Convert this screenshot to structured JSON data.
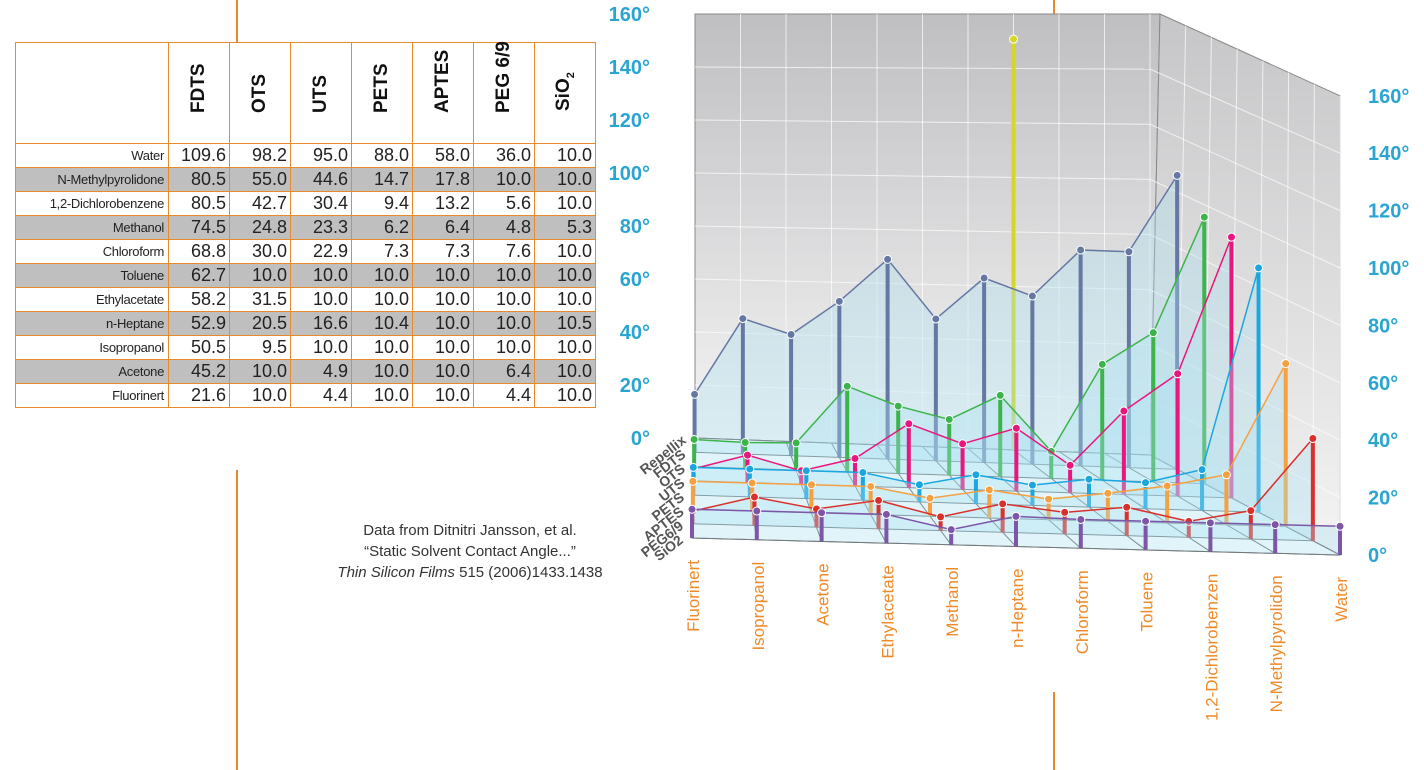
{
  "table": {
    "columns": [
      "FDTS",
      "OTS",
      "UTS",
      "PETS",
      "APTES",
      "PEG 6/9",
      "SiO"
    ],
    "sio_subscript": "2",
    "rows": [
      {
        "label": "Water",
        "values": [
          "109.6",
          "98.2",
          "95.0",
          "88.0",
          "58.0",
          "36.0",
          "10.0"
        ]
      },
      {
        "label": "N-Methylpyrolidone",
        "values": [
          "80.5",
          "55.0",
          "44.6",
          "14.7",
          "17.8",
          "10.0",
          "10.0"
        ]
      },
      {
        "label": "1,2-Dichlorobenzene",
        "values": [
          "80.5",
          "42.7",
          "30.4",
          "9.4",
          "13.2",
          "5.6",
          "10.0"
        ]
      },
      {
        "label": "Methanol",
        "values": [
          "74.5",
          "24.8",
          "23.3",
          "6.2",
          "6.4",
          "4.8",
          "5.3"
        ]
      },
      {
        "label": "Chloroform",
        "values": [
          "68.8",
          "30.0",
          "22.9",
          "7.3",
          "7.3",
          "7.6",
          "10.0"
        ]
      },
      {
        "label": "Toluene",
        "values": [
          "62.7",
          "10.0",
          "10.0",
          "10.0",
          "10.0",
          "10.0",
          "10.0"
        ]
      },
      {
        "label": "Ethylacetate",
        "values": [
          "58.2",
          "31.5",
          "10.0",
          "10.0",
          "10.0",
          "10.0",
          "10.0"
        ]
      },
      {
        "label": "n-Heptane",
        "values": [
          "52.9",
          "20.5",
          "16.6",
          "10.4",
          "10.0",
          "10.0",
          "10.5"
        ]
      },
      {
        "label": "Isopropanol",
        "values": [
          "50.5",
          "9.5",
          "10.0",
          "10.0",
          "10.0",
          "10.0",
          "10.0"
        ]
      },
      {
        "label": "Acetone",
        "values": [
          "45.2",
          "10.0",
          "4.9",
          "10.0",
          "10.0",
          "6.4",
          "10.0"
        ]
      },
      {
        "label": "Fluorinert",
        "values": [
          "21.6",
          "10.0",
          "4.4",
          "10.0",
          "10.0",
          "4.4",
          "10.0"
        ]
      }
    ]
  },
  "citation": {
    "line1": "Data from Ditnitri Jansson, et al.",
    "line2": "“Static Solvent Contact Angle...”",
    "journal": "Thin Silicon Films",
    "ref": " 515 (2006)1433.1438"
  },
  "chart_data": {
    "type": "bar",
    "categories": [
      "Fluorinert",
      "Isopropanol",
      "Acetone",
      "Ethylacetate",
      "Methanol",
      "n-Heptane",
      "Chloroform",
      "Toluene",
      "1,2-Dichlorobenzen",
      "N-Methylpyrolidon",
      "Water"
    ],
    "series": [
      {
        "name": "Repellix",
        "color": "#d6d626",
        "values": [
          null,
          null,
          null,
          null,
          null,
          null,
          null,
          155,
          null,
          null,
          null
        ]
      },
      {
        "name": "FDTS",
        "color": "#6577a3",
        "values": [
          21.6,
          50.5,
          45.2,
          58.2,
          74.5,
          52.9,
          68.8,
          62.7,
          80.5,
          80.5,
          109.6
        ]
      },
      {
        "name": "OTS",
        "color": "#3cb44b",
        "values": [
          10.0,
          9.5,
          10.0,
          31.5,
          24.8,
          20.5,
          30.0,
          10.0,
          42.7,
          55.0,
          98.2
        ]
      },
      {
        "name": "UTS",
        "color": "#e8177d",
        "values": [
          4.4,
          10.0,
          4.9,
          10.0,
          23.3,
          16.6,
          22.9,
          10.0,
          30.4,
          44.6,
          95.0
        ]
      },
      {
        "name": "PETS",
        "color": "#1aa7e0",
        "values": [
          10.0,
          10.0,
          10.0,
          10.0,
          6.2,
          10.4,
          7.3,
          10.0,
          9.4,
          14.7,
          88.0
        ]
      },
      {
        "name": "APTES",
        "color": "#f5a142",
        "values": [
          10.0,
          10.0,
          10.0,
          10.0,
          6.4,
          10.0,
          7.3,
          10.0,
          13.2,
          17.8,
          58.0
        ]
      },
      {
        "name": "PEG6/9",
        "color": "#d9302c",
        "values": [
          4.4,
          10.0,
          6.4,
          10.0,
          4.8,
          10.0,
          7.6,
          10.0,
          5.6,
          10.0,
          36.0
        ]
      },
      {
        "name": "SiO2",
        "color": "#7d56a8",
        "values": [
          10.0,
          10.0,
          10.0,
          10.0,
          5.3,
          10.5,
          10.0,
          10.0,
          10.0,
          10.0,
          10.0
        ]
      }
    ],
    "left_axis_ticks": [
      "0°",
      "20°",
      "40°",
      "60°",
      "80°",
      "100°",
      "120°",
      "140°",
      "160°"
    ],
    "right_axis_ticks": [
      "0°",
      "20°",
      "40°",
      "60°",
      "80°",
      "100°",
      "120°",
      "140°",
      "160°"
    ],
    "ylim": [
      0,
      160
    ],
    "grid": true,
    "colors": {
      "axis_label": "#2aa5d2",
      "category_label": "#ef8a2a",
      "tick_text": "#555555"
    }
  }
}
